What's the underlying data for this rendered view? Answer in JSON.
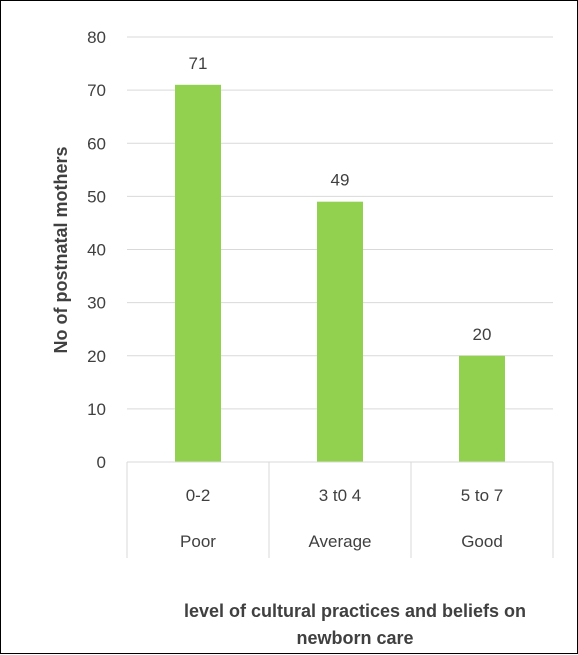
{
  "chart_data": {
    "type": "bar",
    "categories": [
      {
        "range": "0-2",
        "level": "Poor"
      },
      {
        "range": "3 t0 4",
        "level": "Average"
      },
      {
        "range": "5 to 7",
        "level": "Good"
      }
    ],
    "values": [
      71,
      49,
      20
    ],
    "data_labels": [
      "71",
      "49",
      "20"
    ],
    "yticks": [
      "0",
      "10",
      "20",
      "30",
      "40",
      "50",
      "60",
      "70",
      "80"
    ],
    "ylim": [
      0,
      80
    ],
    "ylabel": "No of postnatal mothers",
    "xlabel_line1": "level of cultural practices and beliefs on",
    "xlabel_line2": "newborn care",
    "grid": true,
    "bar_color": "#92d050",
    "gridline_color": "#d9d9d9"
  }
}
